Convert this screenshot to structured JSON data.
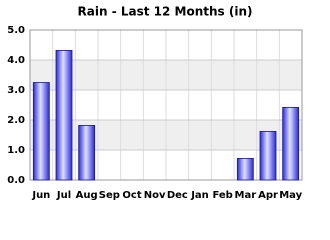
{
  "chart_data": {
    "type": "bar",
    "title": "Rain - Last 12 Months (in)",
    "categories": [
      "Jun",
      "Jul",
      "Aug",
      "Sep",
      "Oct",
      "Nov",
      "Dec",
      "Jan",
      "Feb",
      "Mar",
      "Apr",
      "May"
    ],
    "values": [
      3.25,
      4.32,
      1.82,
      0,
      0,
      0,
      0,
      0,
      0,
      0.72,
      1.62,
      2.42
    ],
    "color": "#2a2ae0",
    "ylim": [
      0,
      5
    ],
    "yticks": [
      {
        "value": 0,
        "label": "0.0"
      },
      {
        "value": 1,
        "label": "1.0"
      },
      {
        "value": 2,
        "label": "2.0"
      },
      {
        "value": 3,
        "label": "3.0"
      },
      {
        "value": 4,
        "label": "4.0"
      },
      {
        "value": 5,
        "label": "5.0"
      }
    ],
    "grid": true
  }
}
